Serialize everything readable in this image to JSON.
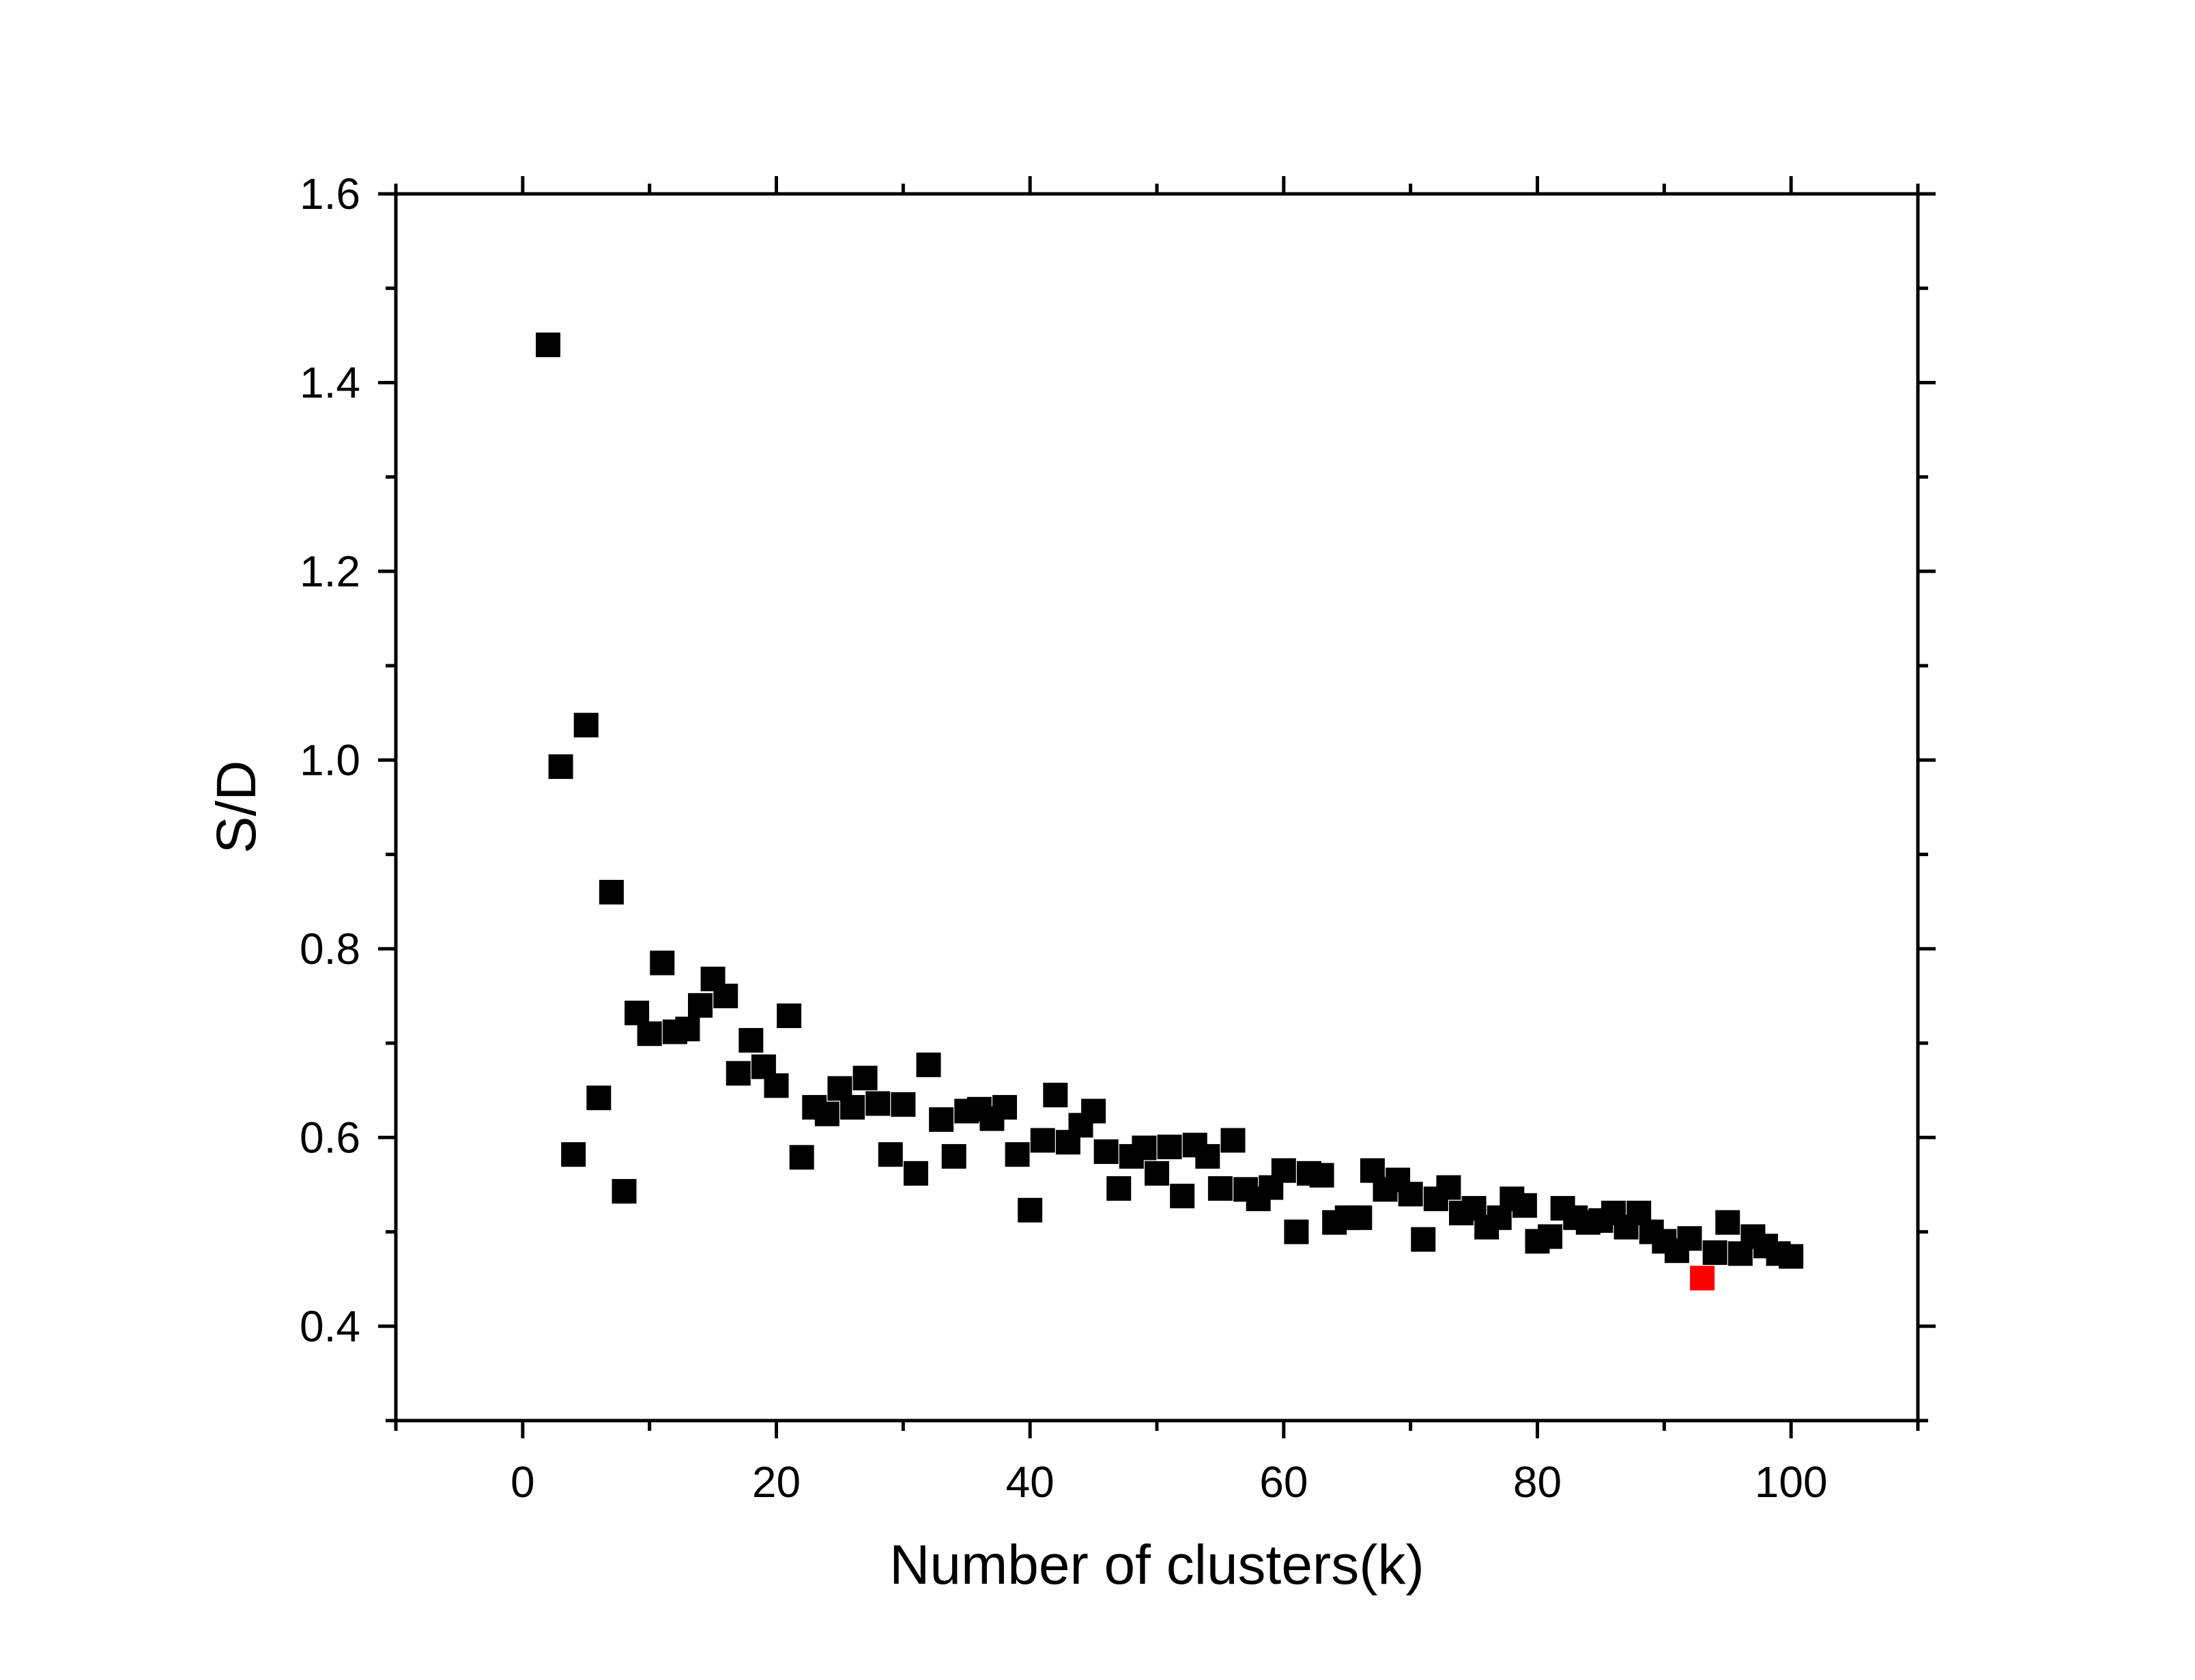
{
  "chart_data": {
    "type": "scatter",
    "title": "",
    "xlabel": "Number of clusters(k)",
    "ylabel": "S/D",
    "xlim": [
      -10,
      110
    ],
    "ylim": [
      0.3,
      1.6
    ],
    "x_ticks": [
      0,
      20,
      40,
      60,
      80,
      100
    ],
    "x_tick_labels": [
      "0",
      "20",
      "40",
      "60",
      "80",
      "100"
    ],
    "y_ticks": [
      0.4,
      0.6,
      0.8,
      1.0,
      1.2,
      1.4,
      1.6
    ],
    "y_tick_labels": [
      "0.4",
      "0.6",
      "0.8",
      "1.0",
      "1.2",
      "1.4",
      "1.6"
    ],
    "grid": false,
    "marker": "square",
    "marker_color": "#000000",
    "highlight_color": "#ff0000",
    "series": [
      {
        "x": [
          2,
          3,
          4,
          5,
          6,
          7,
          8,
          9,
          10,
          11,
          12,
          13,
          14,
          15,
          16,
          17,
          18,
          19,
          20,
          21,
          22,
          23,
          24,
          25,
          26,
          27,
          28,
          29,
          30,
          31,
          32,
          33,
          34,
          35,
          36,
          37,
          38,
          39,
          40,
          41,
          42,
          43,
          44,
          45,
          46,
          47,
          48,
          49,
          50,
          51,
          52,
          53,
          54,
          55,
          56,
          57,
          58,
          59,
          60,
          61,
          62,
          63,
          64,
          65,
          66,
          67,
          68,
          69,
          70,
          71,
          72,
          73,
          74,
          75,
          76,
          77,
          78,
          79,
          80,
          81,
          82,
          83,
          84,
          85,
          86,
          87,
          88,
          89,
          90,
          91,
          92,
          94,
          95,
          96,
          97,
          98,
          99,
          100
        ],
        "y": [
          1.44,
          0.993,
          0.582,
          1.037,
          0.642,
          0.86,
          0.543,
          0.732,
          0.71,
          0.785,
          0.712,
          0.715,
          0.74,
          0.768,
          0.75,
          0.668,
          0.703,
          0.675,
          0.655,
          0.729,
          0.579,
          0.632,
          0.625,
          0.652,
          0.632,
          0.663,
          0.636,
          0.582,
          0.635,
          0.562,
          0.677,
          0.619,
          0.58,
          0.628,
          0.63,
          0.62,
          0.632,
          0.582,
          0.523,
          0.597,
          0.645,
          0.595,
          0.613,
          0.628,
          0.585,
          0.546,
          0.58,
          0.589,
          0.562,
          0.59,
          0.538,
          0.592,
          0.58,
          0.546,
          0.597,
          0.545,
          0.535,
          0.547,
          0.565,
          0.5,
          0.562,
          0.56,
          0.51,
          0.515,
          0.515,
          0.565,
          0.545,
          0.555,
          0.54,
          0.492,
          0.535,
          0.547,
          0.52,
          0.525,
          0.505,
          0.515,
          0.535,
          0.528,
          0.49,
          0.495,
          0.525,
          0.515,
          0.51,
          0.512,
          0.52,
          0.505,
          0.52,
          0.5,
          0.49,
          0.48,
          0.493,
          0.478,
          0.51,
          0.477,
          0.495,
          0.485,
          0.477,
          0.474
        ]
      },
      {
        "x": [
          93
        ],
        "y": [
          0.451
        ],
        "highlight": true
      }
    ]
  }
}
